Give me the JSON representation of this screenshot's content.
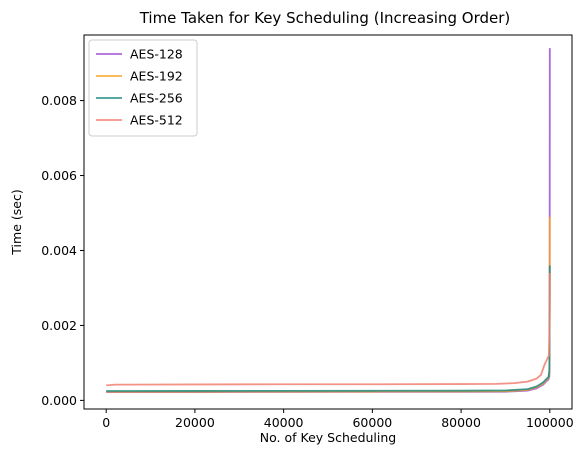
{
  "chart_data": {
    "type": "line",
    "title": "Time Taken for Key Scheduling (Increasing Order)",
    "xlabel": "No. of Key Scheduling",
    "ylabel": "Time (sec)",
    "xlim": [
      -5000,
      105000
    ],
    "ylim": [
      -0.00023,
      0.00975
    ],
    "xticks": [
      0,
      20000,
      40000,
      60000,
      80000,
      100000
    ],
    "xtick_labels": [
      "0",
      "20000",
      "40000",
      "60000",
      "80000",
      "100000"
    ],
    "yticks": [
      0.0,
      0.002,
      0.004,
      0.006,
      0.008
    ],
    "ytick_labels": [
      "0.000",
      "0.002",
      "0.004",
      "0.006",
      "0.008"
    ],
    "grid": false,
    "legend_position": "top-left",
    "series": [
      {
        "name": "AES-128",
        "color": "#9b4fd1",
        "x": [
          0,
          20000,
          40000,
          60000,
          80000,
          90000,
          95000,
          97000,
          98500,
          99300,
          99700,
          99900,
          99960,
          100000
        ],
        "y": [
          0.00022,
          0.000222,
          0.000224,
          0.000226,
          0.000228,
          0.000232,
          0.00026,
          0.00032,
          0.00042,
          0.00052,
          0.00056,
          0.00065,
          0.0025,
          0.0094
        ]
      },
      {
        "name": "AES-192",
        "color": "#f5a623",
        "x": [
          0,
          20000,
          40000,
          60000,
          80000,
          90000,
          95000,
          97000,
          98500,
          99300,
          99700,
          99900,
          99960,
          100000
        ],
        "y": [
          0.00023,
          0.000232,
          0.000234,
          0.000236,
          0.000238,
          0.000245,
          0.00028,
          0.00035,
          0.00045,
          0.00055,
          0.0006,
          0.00075,
          0.0022,
          0.0049
        ]
      },
      {
        "name": "AES-256",
        "color": "#1f8a84",
        "x": [
          0,
          20000,
          40000,
          60000,
          80000,
          90000,
          95000,
          97000,
          98500,
          99300,
          99700,
          99900,
          99960,
          100000
        ],
        "y": [
          0.00025,
          0.000252,
          0.000254,
          0.000256,
          0.000258,
          0.000265,
          0.0003,
          0.00037,
          0.00048,
          0.00058,
          0.00062,
          0.0008,
          0.002,
          0.0036
        ]
      },
      {
        "name": "AES-512",
        "color": "#f08070",
        "x": [
          0,
          2000,
          20000,
          40000,
          60000,
          80000,
          88000,
          92000,
          95000,
          97000,
          98000,
          98800,
          99400,
          99800,
          99950,
          100000
        ],
        "y": [
          0.0004,
          0.00042,
          0.000425,
          0.00043,
          0.00043,
          0.000435,
          0.00044,
          0.00046,
          0.0005,
          0.00058,
          0.00068,
          0.00095,
          0.0011,
          0.0012,
          0.002,
          0.0034
        ]
      }
    ]
  }
}
